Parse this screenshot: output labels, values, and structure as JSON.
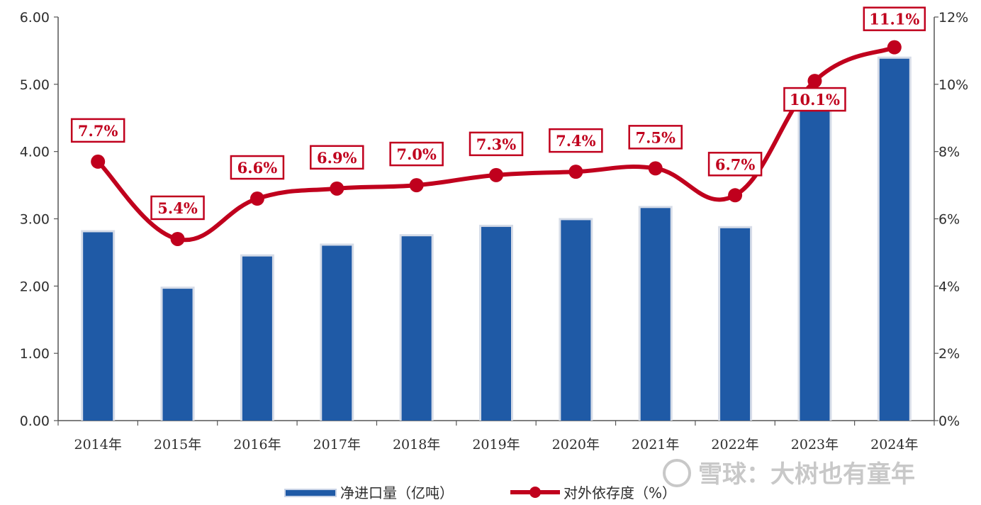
{
  "chart_data": {
    "type": "bar+line",
    "categories": [
      "2014年",
      "2015年",
      "2016年",
      "2017年",
      "2018年",
      "2019年",
      "2020年",
      "2021年",
      "2022年",
      "2023年",
      "2024年"
    ],
    "series": [
      {
        "name": "净进口量（亿吨）",
        "type": "bar",
        "axis": "left",
        "color": "#1f5aa6",
        "values": [
          2.8,
          1.96,
          2.44,
          2.6,
          2.74,
          2.88,
          2.98,
          3.16,
          2.86,
          4.62,
          5.38
        ]
      },
      {
        "name": "对外依存度（%）",
        "type": "line",
        "axis": "right",
        "color": "#c0001d",
        "values": [
          7.7,
          5.4,
          6.6,
          6.9,
          7.0,
          7.3,
          7.4,
          7.5,
          6.7,
          10.1,
          11.1
        ],
        "labels": [
          "7.7%",
          "5.4%",
          "6.6%",
          "6.9%",
          "7.0%",
          "7.3%",
          "7.4%",
          "7.5%",
          "6.7%",
          "10.1%",
          "11.1%"
        ]
      }
    ],
    "y_left": {
      "min": 0,
      "max": 6,
      "ticks": [
        "0.00",
        "1.00",
        "2.00",
        "3.00",
        "4.00",
        "5.00",
        "6.00"
      ]
    },
    "y_right": {
      "min": 0,
      "max": 12,
      "ticks": [
        "0%",
        "2%",
        "4%",
        "6%",
        "8%",
        "10%",
        "12%"
      ]
    },
    "legend_position": "bottom",
    "grid": false
  },
  "legend": {
    "bar_label": "净进口量（亿吨）",
    "line_label": "对外依存度（%）"
  },
  "watermark": "雪球：大树也有童年"
}
